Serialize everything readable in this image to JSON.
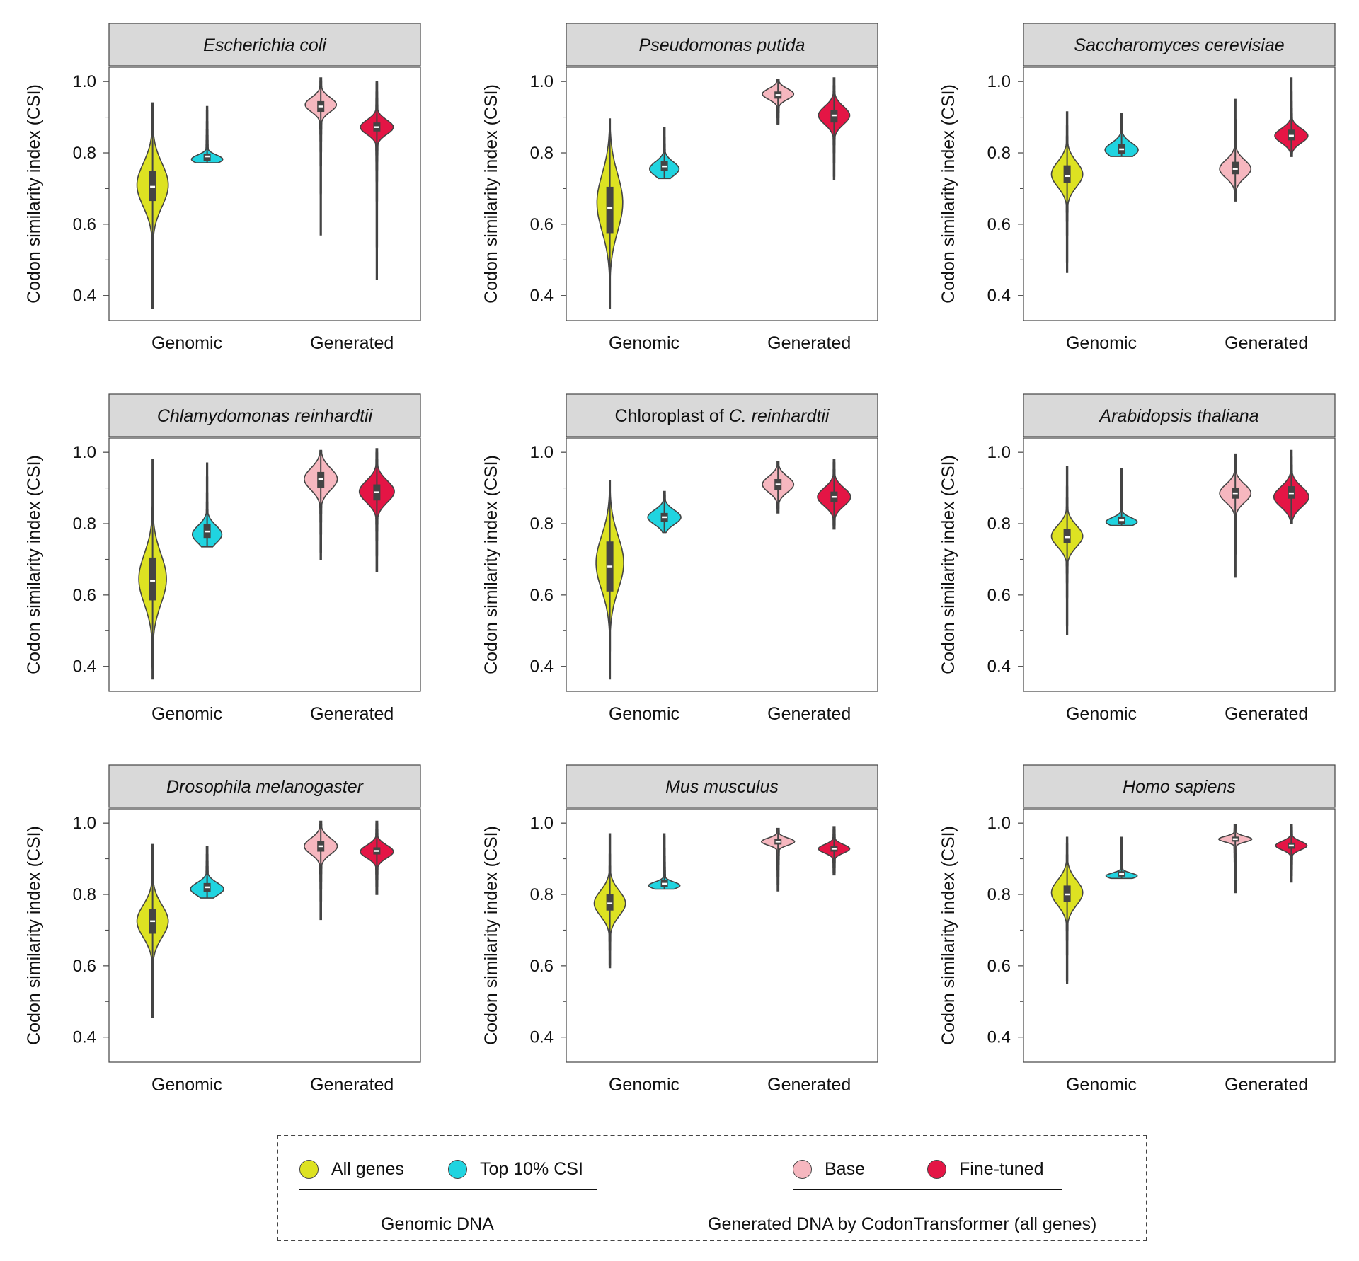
{
  "colors": {
    "all_genes": "#dde222",
    "top10": "#20d4e0",
    "base": "#f6b7bf",
    "finetuned": "#e41545",
    "strip": "#d9d9d9",
    "outline": "#444444"
  },
  "chart_data": {
    "type": "violin",
    "ylabel": "Codon similarity index (CSI)",
    "yticks": [
      "0.4",
      "0.6",
      "0.8",
      "1.0"
    ],
    "ylim": [
      0.33,
      1.04
    ],
    "x_categories": [
      "Genomic",
      "Generated"
    ],
    "series_names": [
      "All genes",
      "Top 10% CSI",
      "Base",
      "Fine-tuned"
    ],
    "panels": [
      {
        "title": "Escherichia coli",
        "italic_title": "Escherichia coli",
        "violins": [
          {
            "series": "All genes",
            "min": 0.365,
            "max": 0.94,
            "q1": 0.665,
            "median": 0.705,
            "q3": 0.75,
            "mode": 0.71,
            "spread": 0.06,
            "width": 0.85
          },
          {
            "series": "Top 10% CSI",
            "min": 0.772,
            "max": 0.93,
            "q1": 0.778,
            "median": 0.79,
            "q3": 0.797,
            "mode": 0.782,
            "spread": 0.012,
            "width": 0.85
          },
          {
            "series": "Base",
            "min": 0.57,
            "max": 1.01,
            "q1": 0.915,
            "median": 0.93,
            "q3": 0.945,
            "mode": 0.935,
            "spread": 0.02,
            "width": 0.85
          },
          {
            "series": "Fine-tuned",
            "min": 0.445,
            "max": 1.0,
            "q1": 0.86,
            "median": 0.872,
            "q3": 0.885,
            "mode": 0.872,
            "spread": 0.02,
            "width": 0.9
          }
        ]
      },
      {
        "title": "Pseudomonas putida",
        "italic_title": "Pseudomonas putida",
        "violins": [
          {
            "series": "All genes",
            "min": 0.365,
            "max": 0.895,
            "q1": 0.575,
            "median": 0.645,
            "q3": 0.705,
            "mode": 0.66,
            "spread": 0.08,
            "width": 0.7
          },
          {
            "series": "Top 10% CSI",
            "min": 0.728,
            "max": 0.87,
            "q1": 0.75,
            "median": 0.762,
            "q3": 0.778,
            "mode": 0.755,
            "spread": 0.02,
            "width": 0.8
          },
          {
            "series": "Base",
            "min": 0.88,
            "max": 1.005,
            "q1": 0.952,
            "median": 0.962,
            "q3": 0.972,
            "mode": 0.965,
            "spread": 0.015,
            "width": 0.85
          },
          {
            "series": "Fine-tuned",
            "min": 0.725,
            "max": 1.01,
            "q1": 0.885,
            "median": 0.905,
            "q3": 0.92,
            "mode": 0.905,
            "spread": 0.025,
            "width": 0.85
          }
        ]
      },
      {
        "title": "Saccharomyces cerevisiae",
        "italic_title": "Saccharomyces cerevisiae",
        "violins": [
          {
            "series": "All genes",
            "min": 0.465,
            "max": 0.915,
            "q1": 0.715,
            "median": 0.735,
            "q3": 0.765,
            "mode": 0.74,
            "spread": 0.035,
            "width": 0.85
          },
          {
            "series": "Top 10% CSI",
            "min": 0.79,
            "max": 0.91,
            "q1": 0.797,
            "median": 0.81,
            "q3": 0.825,
            "mode": 0.808,
            "spread": 0.02,
            "width": 0.9
          },
          {
            "series": "Base",
            "min": 0.665,
            "max": 0.95,
            "q1": 0.74,
            "median": 0.755,
            "q3": 0.775,
            "mode": 0.755,
            "spread": 0.025,
            "width": 0.85
          },
          {
            "series": "Fine-tuned",
            "min": 0.79,
            "max": 1.01,
            "q1": 0.835,
            "median": 0.848,
            "q3": 0.865,
            "mode": 0.848,
            "spread": 0.02,
            "width": 0.9
          }
        ]
      },
      {
        "title": "Chlamydomonas reinhardtii",
        "italic_title": "Chlamydomonas reinhardtii",
        "violins": [
          {
            "series": "All genes",
            "min": 0.365,
            "max": 0.98,
            "q1": 0.585,
            "median": 0.64,
            "q3": 0.705,
            "mode": 0.645,
            "spread": 0.07,
            "width": 0.75
          },
          {
            "series": "Top 10% CSI",
            "min": 0.735,
            "max": 0.97,
            "q1": 0.76,
            "median": 0.778,
            "q3": 0.798,
            "mode": 0.77,
            "spread": 0.025,
            "width": 0.8
          },
          {
            "series": "Base",
            "min": 0.7,
            "max": 1.005,
            "q1": 0.9,
            "median": 0.925,
            "q3": 0.945,
            "mode": 0.925,
            "spread": 0.03,
            "width": 0.9
          },
          {
            "series": "Fine-tuned",
            "min": 0.665,
            "max": 1.01,
            "q1": 0.865,
            "median": 0.888,
            "q3": 0.91,
            "mode": 0.89,
            "spread": 0.03,
            "width": 0.95
          }
        ]
      },
      {
        "title": "Chloroplast of C. reinhardtii",
        "title_prefix": "Chloroplast of ",
        "italic_title": "C. reinhardtii",
        "violins": [
          {
            "series": "All genes",
            "min": 0.365,
            "max": 0.92,
            "q1": 0.61,
            "median": 0.68,
            "q3": 0.75,
            "mode": 0.69,
            "spread": 0.075,
            "width": 0.75
          },
          {
            "series": "Top 10% CSI",
            "min": 0.775,
            "max": 0.89,
            "q1": 0.805,
            "median": 0.818,
            "q3": 0.83,
            "mode": 0.818,
            "spread": 0.02,
            "width": 0.9
          },
          {
            "series": "Base",
            "min": 0.83,
            "max": 0.975,
            "q1": 0.895,
            "median": 0.91,
            "q3": 0.925,
            "mode": 0.91,
            "spread": 0.022,
            "width": 0.85
          },
          {
            "series": "Fine-tuned",
            "min": 0.785,
            "max": 0.98,
            "q1": 0.86,
            "median": 0.875,
            "q3": 0.89,
            "mode": 0.875,
            "spread": 0.025,
            "width": 0.9
          }
        ]
      },
      {
        "title": "Arabidopsis thaliana",
        "italic_title": "Arabidopsis thaliana",
        "violins": [
          {
            "series": "All genes",
            "min": 0.49,
            "max": 0.96,
            "q1": 0.745,
            "median": 0.762,
            "q3": 0.785,
            "mode": 0.765,
            "spread": 0.03,
            "width": 0.85
          },
          {
            "series": "Top 10% CSI",
            "min": 0.795,
            "max": 0.955,
            "q1": 0.8,
            "median": 0.81,
            "q3": 0.818,
            "mode": 0.805,
            "spread": 0.012,
            "width": 0.85
          },
          {
            "series": "Base",
            "min": 0.65,
            "max": 0.995,
            "q1": 0.87,
            "median": 0.885,
            "q3": 0.9,
            "mode": 0.885,
            "spread": 0.025,
            "width": 0.85
          },
          {
            "series": "Fine-tuned",
            "min": 0.8,
            "max": 1.005,
            "q1": 0.87,
            "median": 0.885,
            "q3": 0.905,
            "mode": 0.875,
            "spread": 0.028,
            "width": 0.95
          }
        ]
      },
      {
        "title": "Drosophila melanogaster",
        "italic_title": "Drosophila melanogaster",
        "violins": [
          {
            "series": "All genes",
            "min": 0.455,
            "max": 0.94,
            "q1": 0.69,
            "median": 0.725,
            "q3": 0.76,
            "mode": 0.725,
            "spread": 0.045,
            "width": 0.85
          },
          {
            "series": "Top 10% CSI",
            "min": 0.79,
            "max": 0.935,
            "q1": 0.808,
            "median": 0.82,
            "q3": 0.832,
            "mode": 0.815,
            "spread": 0.018,
            "width": 0.9
          },
          {
            "series": "Base",
            "min": 0.73,
            "max": 1.005,
            "q1": 0.92,
            "median": 0.935,
            "q3": 0.95,
            "mode": 0.935,
            "spread": 0.022,
            "width": 0.9
          },
          {
            "series": "Fine-tuned",
            "min": 0.8,
            "max": 1.005,
            "q1": 0.912,
            "median": 0.922,
            "q3": 0.932,
            "mode": 0.92,
            "spread": 0.018,
            "width": 0.9
          }
        ]
      },
      {
        "title": "Mus musculus",
        "italic_title": "Mus musculus",
        "violins": [
          {
            "series": "All genes",
            "min": 0.595,
            "max": 0.97,
            "q1": 0.755,
            "median": 0.775,
            "q3": 0.8,
            "mode": 0.775,
            "spread": 0.035,
            "width": 0.85
          },
          {
            "series": "Top 10% CSI",
            "min": 0.815,
            "max": 0.97,
            "q1": 0.82,
            "median": 0.83,
            "q3": 0.84,
            "mode": 0.825,
            "spread": 0.01,
            "width": 0.85
          },
          {
            "series": "Base",
            "min": 0.81,
            "max": 0.985,
            "q1": 0.94,
            "median": 0.948,
            "q3": 0.955,
            "mode": 0.948,
            "spread": 0.01,
            "width": 0.9
          },
          {
            "series": "Fine-tuned",
            "min": 0.855,
            "max": 0.99,
            "q1": 0.92,
            "median": 0.928,
            "q3": 0.935,
            "mode": 0.928,
            "spread": 0.012,
            "width": 0.85
          }
        ]
      },
      {
        "title": "Homo sapiens",
        "italic_title": "Homo sapiens",
        "violins": [
          {
            "series": "All genes",
            "min": 0.55,
            "max": 0.96,
            "q1": 0.78,
            "median": 0.8,
            "q3": 0.825,
            "mode": 0.805,
            "spread": 0.035,
            "width": 0.85
          },
          {
            "series": "Top 10% CSI",
            "min": 0.845,
            "max": 0.96,
            "q1": 0.85,
            "median": 0.857,
            "q3": 0.865,
            "mode": 0.852,
            "spread": 0.008,
            "width": 0.85
          },
          {
            "series": "Base",
            "min": 0.805,
            "max": 0.995,
            "q1": 0.948,
            "median": 0.955,
            "q3": 0.962,
            "mode": 0.955,
            "spread": 0.008,
            "width": 0.9
          },
          {
            "series": "Fine-tuned",
            "min": 0.835,
            "max": 0.995,
            "q1": 0.928,
            "median": 0.937,
            "q3": 0.945,
            "mode": 0.937,
            "spread": 0.012,
            "width": 0.85
          }
        ]
      }
    ]
  },
  "legend": {
    "all_genes": "All genes",
    "top10": "Top 10% CSI",
    "base": "Base",
    "finetuned": "Fine-tuned",
    "genomic_group": "Genomic DNA",
    "generated_group": "Generated DNA by CodonTransformer (all genes)"
  }
}
